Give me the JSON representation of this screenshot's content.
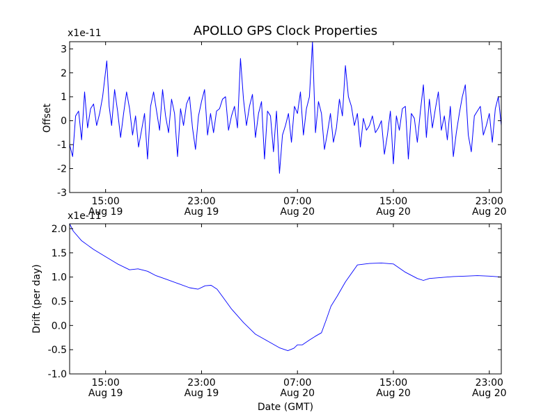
{
  "figure": {
    "title": "APOLLO GPS Clock Properties",
    "xlabel": "Date (GMT)",
    "line_color": "#0000ff"
  },
  "chart_data": [
    {
      "type": "line",
      "title": "APOLLO GPS Clock Properties",
      "ylabel": "Offset",
      "multiplier": "x1e-11",
      "x_unit": "hours since 2012-08-19 12:00 GMT",
      "xlim": [
        0,
        36
      ],
      "ylim": [
        -3,
        3.3
      ],
      "yticks": [
        -3,
        -2,
        -1,
        0,
        1,
        2,
        3
      ],
      "ytick_labels": [
        "-3",
        "-2",
        "-1",
        "0",
        "1",
        "2",
        "3"
      ],
      "xticks": [
        3,
        11,
        19,
        27,
        35
      ],
      "xtick_labels": [
        [
          "15:00",
          "Aug 19"
        ],
        [
          "23:00",
          "Aug 19"
        ],
        [
          "07:00",
          "Aug 20"
        ],
        [
          "15:00",
          "Aug 20"
        ],
        [
          "23:00",
          "Aug 20"
        ]
      ],
      "series": [
        {
          "x": [
            0,
            0.25,
            0.5,
            0.75,
            1,
            1.25,
            1.5,
            1.75,
            2,
            2.25,
            2.5,
            2.75,
            3.1,
            3.3,
            3.5,
            3.75,
            4,
            4.25,
            4.5,
            4.75,
            5,
            5.25,
            5.5,
            5.75,
            6,
            6.25,
            6.5,
            6.75,
            7,
            7.25,
            7.5,
            7.75,
            8,
            8.25,
            8.5,
            8.75,
            9,
            9.25,
            9.5,
            9.75,
            10,
            10.25,
            10.5,
            10.75,
            11,
            11.25,
            11.5,
            11.75,
            12,
            12.25,
            12.5,
            12.75,
            13,
            13.25,
            13.5,
            13.75,
            14,
            14.25,
            14.5,
            14.75,
            15,
            15.25,
            15.5,
            15.75,
            16,
            16.25,
            16.5,
            16.75,
            17,
            17.25,
            17.5,
            17.75,
            18,
            18.25,
            18.5,
            18.75,
            19,
            19.25,
            19.5,
            19.75,
            20,
            20.25,
            20.5,
            20.75,
            21,
            21.25,
            21.5,
            21.75,
            22,
            22.25,
            22.5,
            22.75,
            23,
            23.25,
            23.5,
            23.75,
            24,
            24.25,
            24.5,
            24.75,
            25,
            25.25,
            25.5,
            25.75,
            26,
            26.25,
            26.5,
            26.75,
            27,
            27.25,
            27.5,
            27.75,
            28,
            28.25,
            28.5,
            28.75,
            29,
            29.25,
            29.5,
            29.75,
            30,
            30.25,
            30.5,
            30.75,
            31,
            31.25,
            31.5,
            31.75,
            32,
            32.25,
            32.5,
            32.75,
            33,
            33.25,
            33.5,
            33.75,
            34,
            34.25,
            34.5,
            34.75,
            35,
            35.25,
            35.5,
            35.75,
            36
          ],
          "y": [
            -1.0,
            -1.5,
            0.2,
            0.4,
            -0.8,
            1.2,
            -0.3,
            0.5,
            0.7,
            -0.2,
            0.3,
            1.0,
            2.5,
            0.6,
            -0.2,
            1.3,
            0.4,
            -0.7,
            0.3,
            1.2,
            0.5,
            -0.6,
            0.2,
            -1.1,
            -0.4,
            0.3,
            -1.6,
            0.6,
            1.2,
            0.4,
            -0.4,
            1.3,
            0.2,
            -0.5,
            0.9,
            0.3,
            -1.5,
            0.5,
            -0.2,
            0.7,
            1.0,
            -0.3,
            -1.2,
            0.2,
            0.8,
            1.3,
            -0.6,
            0.3,
            -0.5,
            0.4,
            0.5,
            0.9,
            1.0,
            -0.4,
            0.2,
            0.6,
            -0.3,
            2.6,
            0.9,
            -0.2,
            0.6,
            1.1,
            -0.7,
            0.3,
            0.8,
            -1.6,
            0.4,
            0.2,
            -1.3,
            0.4,
            -2.2,
            -0.6,
            -0.2,
            0.3,
            -0.9,
            0.6,
            0.3,
            1.2,
            -0.6,
            0.5,
            1.0,
            3.3,
            -0.5,
            0.8,
            0.3,
            -1.2,
            -0.5,
            0.3,
            -0.9,
            -0.3,
            0.9,
            0.2,
            2.3,
            1.0,
            0.6,
            -0.2,
            0.3,
            -1.1,
            0.1,
            -0.4,
            -0.2,
            0.2,
            -0.5,
            -0.3,
            0.0,
            -1.4,
            -0.6,
            0.4,
            -1.8,
            0.2,
            -0.4,
            0.5,
            0.6,
            -1.6,
            0.3,
            0.1,
            -0.9,
            0.4,
            1.5,
            -0.7,
            0.9,
            -0.3,
            0.5,
            1.2,
            -0.4,
            0.2,
            -0.8,
            0.6,
            -1.5,
            -0.5,
            0.3,
            1.0,
            1.5,
            -0.6,
            -1.3,
            0.2,
            0.4,
            0.6,
            -0.6,
            -0.2,
            0.3,
            -0.9,
            0.5,
            1.0,
            -0.2
          ]
        }
      ]
    },
    {
      "type": "line",
      "ylabel": "Drift (per day)",
      "xlabel": "Date (GMT)",
      "multiplier": "x1e-11",
      "x_unit": "hours since 2012-08-19 12:00 GMT",
      "xlim": [
        0,
        36
      ],
      "ylim": [
        -1.0,
        2.1
      ],
      "yticks": [
        -1.0,
        -0.5,
        0.0,
        0.5,
        1.0,
        1.5,
        2.0
      ],
      "ytick_labels": [
        "-1.0",
        "-0.5",
        "0.0",
        "0.5",
        "1.0",
        "1.5",
        "2.0"
      ],
      "xticks": [
        3,
        11,
        19,
        27,
        35
      ],
      "xtick_labels": [
        [
          "15:00",
          "Aug 19"
        ],
        [
          "23:00",
          "Aug 19"
        ],
        [
          "07:00",
          "Aug 20"
        ],
        [
          "15:00",
          "Aug 20"
        ],
        [
          "23:00",
          "Aug 20"
        ]
      ],
      "series": [
        {
          "x": [
            0,
            0.3,
            1,
            2,
            3,
            4,
            5,
            5.7,
            6.5,
            7.2,
            8,
            9,
            10,
            10.7,
            11.3,
            11.8,
            12.3,
            12.8,
            13.5,
            14.5,
            15.5,
            16.5,
            17.5,
            18.2,
            18.7,
            19.0,
            19.4,
            20.0,
            20.5,
            21.0,
            21.4,
            21.8,
            22.3,
            23,
            24,
            25,
            26,
            27,
            28,
            29,
            29.5,
            30,
            31,
            32,
            33,
            34,
            35,
            36
          ],
          "y": [
            2.1,
            1.95,
            1.75,
            1.57,
            1.42,
            1.27,
            1.15,
            1.17,
            1.12,
            1.03,
            0.96,
            0.87,
            0.78,
            0.75,
            0.82,
            0.83,
            0.75,
            0.58,
            0.34,
            0.06,
            -0.18,
            -0.32,
            -0.46,
            -0.52,
            -0.47,
            -0.4,
            -0.4,
            -0.3,
            -0.22,
            -0.15,
            0.12,
            0.4,
            0.6,
            0.9,
            1.25,
            1.28,
            1.29,
            1.27,
            1.1,
            0.97,
            0.93,
            0.97,
            0.99,
            1.01,
            1.02,
            1.03,
            1.02,
            1.0
          ]
        }
      ]
    }
  ]
}
